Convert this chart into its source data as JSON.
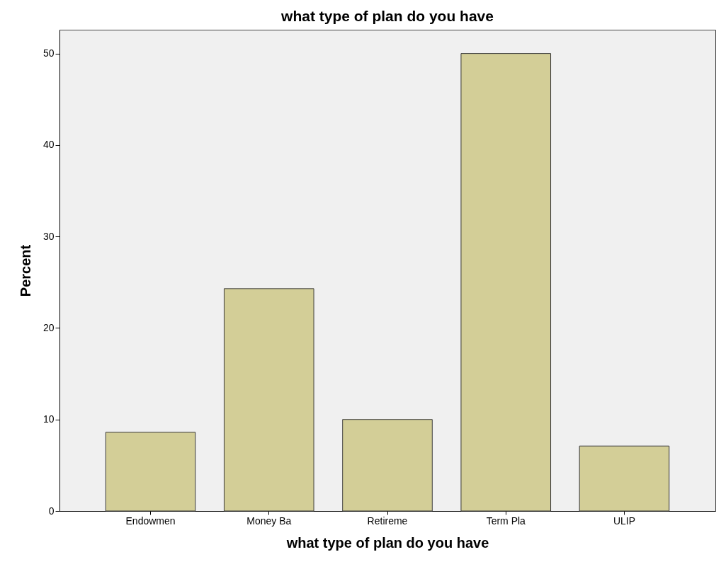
{
  "chart_data": {
    "type": "bar",
    "title": "what type of plan do you have",
    "xlabel": "what type of plan do you have",
    "ylabel": "Percent",
    "categories": [
      "Endowmen",
      "Money Ba",
      "Retireme",
      "Term Pla",
      "ULIP"
    ],
    "values": [
      8.6,
      24.3,
      10.0,
      50.0,
      7.1
    ],
    "color": "#d3ce97",
    "ylim": [
      0,
      52.6
    ],
    "yticks": [
      0,
      10,
      20,
      30,
      40,
      50
    ],
    "grid": false
  }
}
